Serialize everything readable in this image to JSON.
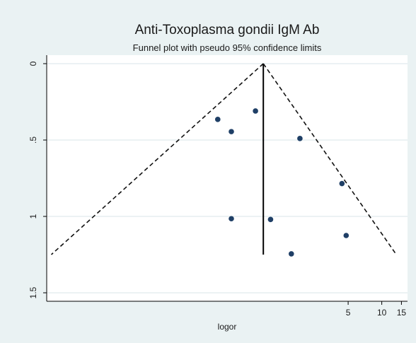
{
  "chart_data": {
    "type": "scatter",
    "title": "Anti-Toxoplasma gondii IgM Ab",
    "subtitle": "Funnel plot with pseudo 95% confidence limits",
    "xlabel": "logor",
    "ylabel": "",
    "x_scale": "log",
    "xlim": [
      0.01,
      17
    ],
    "ylim": [
      0,
      1.5
    ],
    "y_reversed": true,
    "grid": true,
    "x_ticks": [
      {
        "value": 5,
        "label": "5"
      },
      {
        "value": 10,
        "label": "10"
      },
      {
        "value": 15,
        "label": "15"
      }
    ],
    "y_ticks": [
      {
        "value": 0,
        "label": "0"
      },
      {
        "value": 0.5,
        "label": ".5"
      },
      {
        "value": 1,
        "label": "1"
      },
      {
        "value": 1.5,
        "label": "1.5"
      }
    ],
    "pooled_estimate": 0.87,
    "pooled_line_y_range": [
      0,
      1.25
    ],
    "ci_funnel": {
      "apex": [
        0.87,
        0
      ],
      "left_base": [
        0.011,
        1.25
      ],
      "right_base": [
        13.5,
        1.25
      ]
    },
    "points": [
      {
        "x": 0.34,
        "y": 0.365
      },
      {
        "x": 0.74,
        "y": 0.31
      },
      {
        "x": 0.45,
        "y": 0.445
      },
      {
        "x": 1.85,
        "y": 0.49
      },
      {
        "x": 4.4,
        "y": 0.785
      },
      {
        "x": 0.45,
        "y": 1.015
      },
      {
        "x": 1.01,
        "y": 1.02
      },
      {
        "x": 4.8,
        "y": 1.125
      },
      {
        "x": 1.55,
        "y": 1.245
      }
    ],
    "colors": {
      "background": "#eaf2f3",
      "plot": "#ffffff",
      "points": "#1f3f66",
      "lines": "#111111"
    }
  }
}
